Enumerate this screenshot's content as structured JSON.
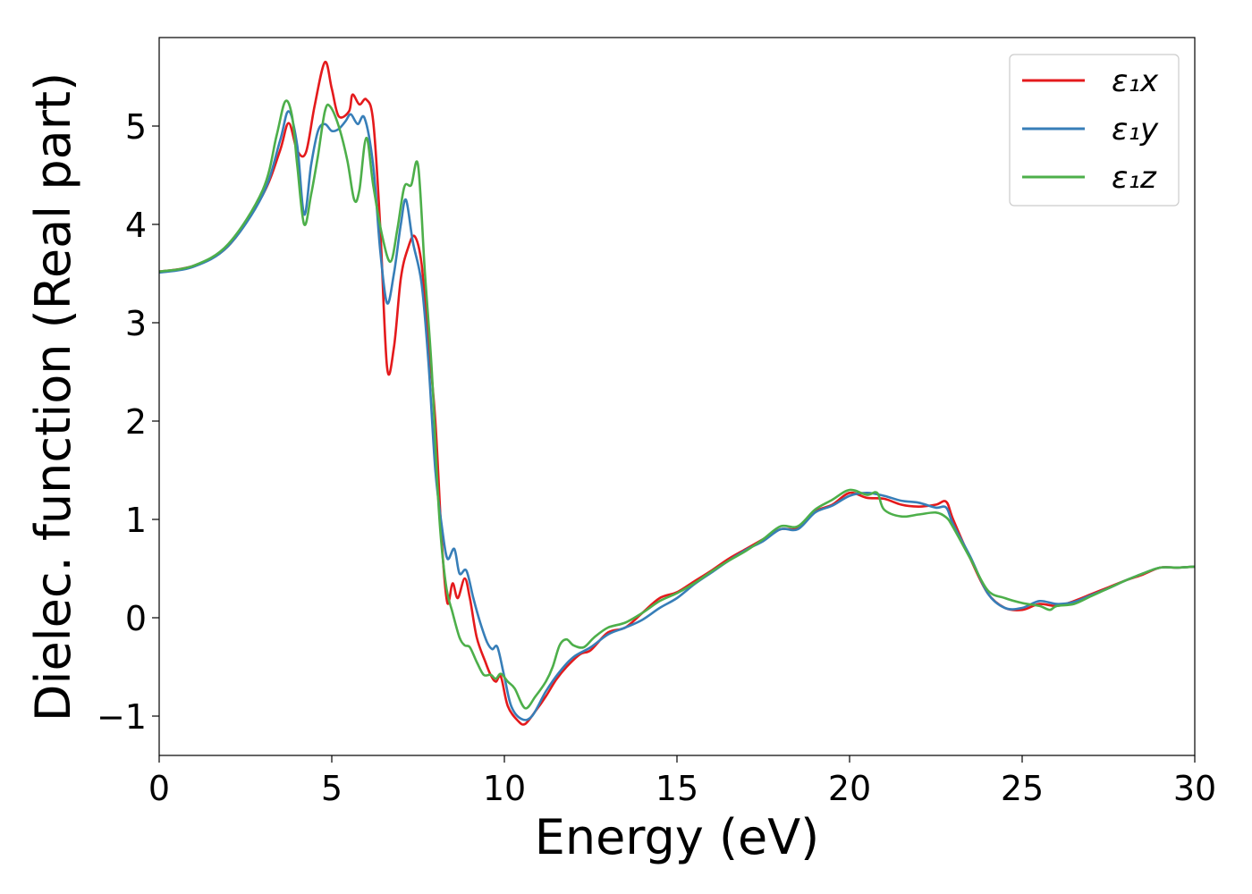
{
  "chart_data": {
    "type": "line",
    "title": "",
    "xlabel": "Energy (eV)",
    "ylabel": "Dielec. function (Real part)",
    "xlim": [
      0,
      30
    ],
    "ylim": [
      -1.4,
      5.9
    ],
    "xticks": [
      0,
      5,
      10,
      15,
      20,
      25,
      30
    ],
    "xtick_labels": [
      "0",
      "5",
      "10",
      "15",
      "20",
      "25",
      "30"
    ],
    "yticks": [
      -1,
      0,
      1,
      2,
      3,
      4,
      5
    ],
    "ytick_labels": [
      "−1",
      "0",
      "1",
      "2",
      "3",
      "4",
      "5"
    ],
    "grid": false,
    "legend_position": "top-right",
    "series": [
      {
        "name": "ε₁x",
        "color": "#e41a1c",
        "points": [
          [
            0,
            3.52
          ],
          [
            1,
            3.58
          ],
          [
            2,
            3.78
          ],
          [
            3,
            4.3
          ],
          [
            3.5,
            4.75
          ],
          [
            3.75,
            5.03
          ],
          [
            4.0,
            4.75
          ],
          [
            4.25,
            4.73
          ],
          [
            4.5,
            5.2
          ],
          [
            4.8,
            5.65
          ],
          [
            5.0,
            5.38
          ],
          [
            5.2,
            5.1
          ],
          [
            5.5,
            5.15
          ],
          [
            5.6,
            5.32
          ],
          [
            5.8,
            5.22
          ],
          [
            6.0,
            5.27
          ],
          [
            6.2,
            5.05
          ],
          [
            6.4,
            4.0
          ],
          [
            6.6,
            2.55
          ],
          [
            6.8,
            2.75
          ],
          [
            7.0,
            3.45
          ],
          [
            7.2,
            3.75
          ],
          [
            7.4,
            3.88
          ],
          [
            7.6,
            3.6
          ],
          [
            7.8,
            2.8
          ],
          [
            8.0,
            2.0
          ],
          [
            8.2,
            0.7
          ],
          [
            8.35,
            0.15
          ],
          [
            8.5,
            0.35
          ],
          [
            8.65,
            0.2
          ],
          [
            8.85,
            0.4
          ],
          [
            9.0,
            0.2
          ],
          [
            9.2,
            -0.2
          ],
          [
            9.45,
            -0.45
          ],
          [
            9.6,
            -0.58
          ],
          [
            9.75,
            -0.65
          ],
          [
            9.9,
            -0.6
          ],
          [
            10.1,
            -0.9
          ],
          [
            10.4,
            -1.05
          ],
          [
            10.6,
            -1.08
          ],
          [
            10.9,
            -0.95
          ],
          [
            11.2,
            -0.8
          ],
          [
            11.5,
            -0.63
          ],
          [
            11.8,
            -0.5
          ],
          [
            12.2,
            -0.37
          ],
          [
            12.5,
            -0.33
          ],
          [
            13.0,
            -0.15
          ],
          [
            13.5,
            -0.1
          ],
          [
            14.0,
            0.05
          ],
          [
            14.5,
            0.2
          ],
          [
            15.0,
            0.26
          ],
          [
            15.5,
            0.37
          ],
          [
            16.0,
            0.48
          ],
          [
            16.5,
            0.6
          ],
          [
            17.0,
            0.7
          ],
          [
            17.5,
            0.8
          ],
          [
            18.0,
            0.9
          ],
          [
            18.5,
            0.91
          ],
          [
            19.0,
            1.08
          ],
          [
            19.5,
            1.15
          ],
          [
            20.0,
            1.27
          ],
          [
            20.5,
            1.22
          ],
          [
            21.0,
            1.21
          ],
          [
            21.5,
            1.15
          ],
          [
            22.0,
            1.13
          ],
          [
            22.5,
            1.15
          ],
          [
            22.8,
            1.18
          ],
          [
            23.0,
            1.0
          ],
          [
            23.5,
            0.6
          ],
          [
            24.0,
            0.25
          ],
          [
            24.5,
            0.1
          ],
          [
            25.0,
            0.08
          ],
          [
            25.5,
            0.14
          ],
          [
            26.0,
            0.12
          ],
          [
            26.5,
            0.17
          ],
          [
            27.0,
            0.24
          ],
          [
            27.5,
            0.31
          ],
          [
            28.0,
            0.38
          ],
          [
            28.5,
            0.44
          ],
          [
            29.0,
            0.51
          ],
          [
            29.5,
            0.51
          ],
          [
            30.0,
            0.52
          ]
        ]
      },
      {
        "name": "ε₁y",
        "color": "#377eb8",
        "points": [
          [
            0,
            3.51
          ],
          [
            1,
            3.57
          ],
          [
            2,
            3.78
          ],
          [
            3,
            4.3
          ],
          [
            3.5,
            4.85
          ],
          [
            3.75,
            5.15
          ],
          [
            4.0,
            4.8
          ],
          [
            4.2,
            4.1
          ],
          [
            4.4,
            4.6
          ],
          [
            4.6,
            4.95
          ],
          [
            4.8,
            5.02
          ],
          [
            5.0,
            4.95
          ],
          [
            5.2,
            4.97
          ],
          [
            5.4,
            5.05
          ],
          [
            5.55,
            5.12
          ],
          [
            5.75,
            5.02
          ],
          [
            5.95,
            5.08
          ],
          [
            6.2,
            4.6
          ],
          [
            6.4,
            3.75
          ],
          [
            6.6,
            3.2
          ],
          [
            6.8,
            3.5
          ],
          [
            7.0,
            4.0
          ],
          [
            7.15,
            4.25
          ],
          [
            7.35,
            3.82
          ],
          [
            7.6,
            3.4
          ],
          [
            7.8,
            2.6
          ],
          [
            8.0,
            1.5
          ],
          [
            8.2,
            0.9
          ],
          [
            8.35,
            0.6
          ],
          [
            8.55,
            0.7
          ],
          [
            8.7,
            0.45
          ],
          [
            8.9,
            0.48
          ],
          [
            9.1,
            0.2
          ],
          [
            9.3,
            -0.05
          ],
          [
            9.5,
            -0.25
          ],
          [
            9.65,
            -0.32
          ],
          [
            9.8,
            -0.3
          ],
          [
            10.0,
            -0.6
          ],
          [
            10.2,
            -0.9
          ],
          [
            10.5,
            -1.03
          ],
          [
            10.8,
            -1.0
          ],
          [
            11.2,
            -0.75
          ],
          [
            11.6,
            -0.55
          ],
          [
            12.0,
            -0.4
          ],
          [
            12.5,
            -0.3
          ],
          [
            13.0,
            -0.17
          ],
          [
            13.5,
            -0.1
          ],
          [
            14.0,
            -0.02
          ],
          [
            14.5,
            0.1
          ],
          [
            15.0,
            0.2
          ],
          [
            15.5,
            0.34
          ],
          [
            16.0,
            0.46
          ],
          [
            16.5,
            0.58
          ],
          [
            17.0,
            0.69
          ],
          [
            17.5,
            0.78
          ],
          [
            18.0,
            0.9
          ],
          [
            18.5,
            0.9
          ],
          [
            19.0,
            1.07
          ],
          [
            19.5,
            1.14
          ],
          [
            20.0,
            1.24
          ],
          [
            20.5,
            1.27
          ],
          [
            21.0,
            1.24
          ],
          [
            21.5,
            1.19
          ],
          [
            22.0,
            1.17
          ],
          [
            22.5,
            1.12
          ],
          [
            22.8,
            1.12
          ],
          [
            23.0,
            0.95
          ],
          [
            23.5,
            0.62
          ],
          [
            24.0,
            0.25
          ],
          [
            24.5,
            0.1
          ],
          [
            25.0,
            0.1
          ],
          [
            25.5,
            0.17
          ],
          [
            26.0,
            0.14
          ],
          [
            26.5,
            0.16
          ],
          [
            27.0,
            0.23
          ],
          [
            27.5,
            0.3
          ],
          [
            28.0,
            0.38
          ],
          [
            28.5,
            0.45
          ],
          [
            29.0,
            0.51
          ],
          [
            29.5,
            0.51
          ],
          [
            30.0,
            0.52
          ]
        ]
      },
      {
        "name": "ε₁z",
        "color": "#4daf4a",
        "points": [
          [
            0,
            3.52
          ],
          [
            1,
            3.58
          ],
          [
            2,
            3.8
          ],
          [
            3,
            4.35
          ],
          [
            3.4,
            4.9
          ],
          [
            3.65,
            5.25
          ],
          [
            3.85,
            5.1
          ],
          [
            4.0,
            4.6
          ],
          [
            4.2,
            4.0
          ],
          [
            4.4,
            4.3
          ],
          [
            4.6,
            4.7
          ],
          [
            4.8,
            5.15
          ],
          [
            4.95,
            5.2
          ],
          [
            5.2,
            5.0
          ],
          [
            5.45,
            4.65
          ],
          [
            5.65,
            4.25
          ],
          [
            5.8,
            4.35
          ],
          [
            6.0,
            4.88
          ],
          [
            6.2,
            4.4
          ],
          [
            6.45,
            3.9
          ],
          [
            6.7,
            3.62
          ],
          [
            6.9,
            3.95
          ],
          [
            7.1,
            4.38
          ],
          [
            7.3,
            4.4
          ],
          [
            7.5,
            4.6
          ],
          [
            7.7,
            3.5
          ],
          [
            7.9,
            2.5
          ],
          [
            8.1,
            1.1
          ],
          [
            8.3,
            0.35
          ],
          [
            8.5,
            0.05
          ],
          [
            8.7,
            -0.2
          ],
          [
            8.85,
            -0.28
          ],
          [
            9.0,
            -0.3
          ],
          [
            9.2,
            -0.45
          ],
          [
            9.4,
            -0.58
          ],
          [
            9.6,
            -0.58
          ],
          [
            9.75,
            -0.62
          ],
          [
            9.9,
            -0.57
          ],
          [
            10.1,
            -0.65
          ],
          [
            10.3,
            -0.72
          ],
          [
            10.6,
            -0.92
          ],
          [
            10.9,
            -0.8
          ],
          [
            11.2,
            -0.65
          ],
          [
            11.4,
            -0.5
          ],
          [
            11.6,
            -0.28
          ],
          [
            11.8,
            -0.22
          ],
          [
            12.0,
            -0.28
          ],
          [
            12.3,
            -0.3
          ],
          [
            12.6,
            -0.2
          ],
          [
            13.0,
            -0.1
          ],
          [
            13.5,
            -0.05
          ],
          [
            14.0,
            0.05
          ],
          [
            14.5,
            0.17
          ],
          [
            15.0,
            0.25
          ],
          [
            15.5,
            0.35
          ],
          [
            16.0,
            0.47
          ],
          [
            16.5,
            0.58
          ],
          [
            17.0,
            0.68
          ],
          [
            17.5,
            0.8
          ],
          [
            18.0,
            0.93
          ],
          [
            18.5,
            0.93
          ],
          [
            19.0,
            1.1
          ],
          [
            19.5,
            1.2
          ],
          [
            20.0,
            1.3
          ],
          [
            20.5,
            1.25
          ],
          [
            20.8,
            1.27
          ],
          [
            21.0,
            1.1
          ],
          [
            21.5,
            1.03
          ],
          [
            22.0,
            1.05
          ],
          [
            22.5,
            1.07
          ],
          [
            22.8,
            1.02
          ],
          [
            23.0,
            0.92
          ],
          [
            23.5,
            0.6
          ],
          [
            24.0,
            0.28
          ],
          [
            24.5,
            0.2
          ],
          [
            25.0,
            0.15
          ],
          [
            25.5,
            0.12
          ],
          [
            25.8,
            0.08
          ],
          [
            26.0,
            0.12
          ],
          [
            26.5,
            0.14
          ],
          [
            27.0,
            0.22
          ],
          [
            27.5,
            0.3
          ],
          [
            28.0,
            0.38
          ],
          [
            28.5,
            0.45
          ],
          [
            29.0,
            0.51
          ],
          [
            29.5,
            0.51
          ],
          [
            30.0,
            0.52
          ]
        ]
      }
    ]
  }
}
